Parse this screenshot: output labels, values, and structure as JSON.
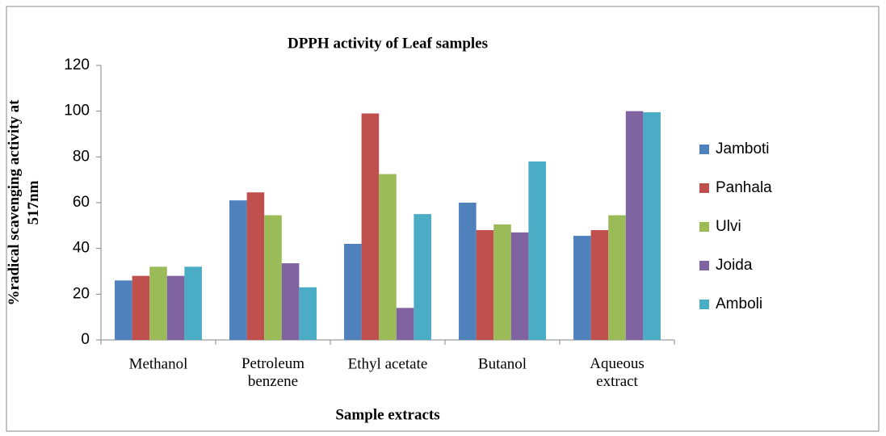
{
  "chart_data": {
    "type": "bar",
    "title": "DPPH activity of Leaf samples",
    "x_label": "Sample extracts",
    "y_label": "%radical scavenging activity at\n517nm",
    "categories": [
      "Methanol",
      "Petroleum\nbenzene",
      "Ethyl acetate",
      "Butanol",
      "Aqueous\nextract"
    ],
    "series": [
      {
        "name": "Jamboti",
        "color": "#4f81bd",
        "values": [
          26,
          61,
          42,
          60,
          45.5
        ]
      },
      {
        "name": "Panhala",
        "color": "#c0504d",
        "values": [
          28,
          64.5,
          99,
          48,
          48
        ]
      },
      {
        "name": "Ulvi",
        "color": "#9bbb59",
        "values": [
          32,
          54.5,
          72.5,
          50.5,
          54.5
        ]
      },
      {
        "name": "Joida",
        "color": "#8064a2",
        "values": [
          28,
          33.5,
          14,
          47,
          100
        ]
      },
      {
        "name": "Amboli",
        "color": "#4bacc6",
        "values": [
          32,
          23,
          55,
          78,
          99.5
        ]
      }
    ],
    "ylim": [
      0,
      120
    ],
    "yticks": [
      0,
      20,
      40,
      60,
      80,
      100,
      120
    ],
    "grid": false,
    "legend": "right"
  }
}
